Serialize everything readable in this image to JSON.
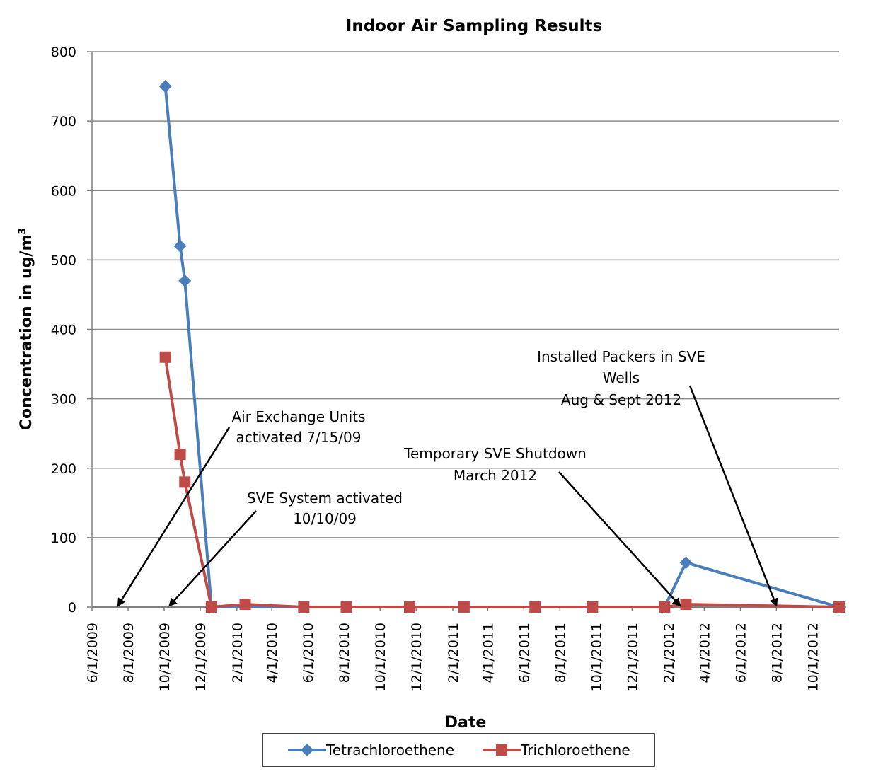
{
  "chart_data": {
    "type": "line",
    "title": "Indoor Air Sampling Results",
    "xlabel": "Date",
    "ylabel": "Concentration in ug/m",
    "ylabel_superscript": "3",
    "ylim": [
      0,
      800
    ],
    "yticks": [
      0,
      100,
      200,
      300,
      400,
      500,
      600,
      700,
      800
    ],
    "xlim": [
      "2009-06-01",
      "2012-11-15"
    ],
    "xticks": [
      "6/1/2009",
      "8/1/2009",
      "10/1/2009",
      "12/1/2009",
      "2/1/2010",
      "4/1/2010",
      "6/1/2010",
      "8/1/2010",
      "10/1/2010",
      "12/1/2010",
      "2/1/2011",
      "4/1/2011",
      "6/1/2011",
      "8/1/2011",
      "10/1/2011",
      "12/1/2011",
      "2/1/2012",
      "4/1/2012",
      "6/1/2012",
      "8/1/2012",
      "10/1/2012"
    ],
    "grid": true,
    "legend_position": "bottom",
    "series": [
      {
        "name": "Tetrachloroethene",
        "color": "#4a7ebb",
        "marker": "diamond",
        "x": [
          "2009-10-03",
          "2009-10-28",
          "2009-11-05",
          "2009-12-20",
          "2012-01-25",
          "2012-03-01",
          "2012-11-15"
        ],
        "y": [
          750,
          520,
          470,
          0,
          0,
          64,
          0
        ]
      },
      {
        "name": "Trichloroethene",
        "color": "#be4b48",
        "marker": "square",
        "x": [
          "2009-10-03",
          "2009-10-28",
          "2009-11-05",
          "2009-12-20",
          "2010-02-15",
          "2010-05-25",
          "2010-08-05",
          "2010-11-20",
          "2011-02-20",
          "2011-06-20",
          "2011-09-25",
          "2012-01-25",
          "2012-03-01",
          "2012-11-15"
        ],
        "y": [
          360,
          220,
          180,
          0,
          4,
          0,
          0,
          0,
          0,
          0,
          0,
          0,
          4,
          0
        ]
      }
    ],
    "annotations": [
      {
        "id": "air-exchange",
        "lines": [
          "Air Exchange Units",
          "activated 7/15/09"
        ],
        "target": {
          "x": "2009-07-15",
          "y": 0
        }
      },
      {
        "id": "sve-activated",
        "lines": [
          "SVE System activated",
          "10/10/09"
        ],
        "target": {
          "x": "2009-10-10",
          "y": 0
        }
      },
      {
        "id": "sve-shutdown",
        "lines": [
          "Temporary SVE Shutdown",
          "March 2012"
        ],
        "target": {
          "x": "2012-02-20",
          "y": 0
        }
      },
      {
        "id": "packers",
        "lines": [
          "Installed Packers in SVE",
          "Wells",
          "Aug & Sept 2012"
        ],
        "target": {
          "x": "2012-08-01",
          "y": 0
        }
      }
    ]
  }
}
